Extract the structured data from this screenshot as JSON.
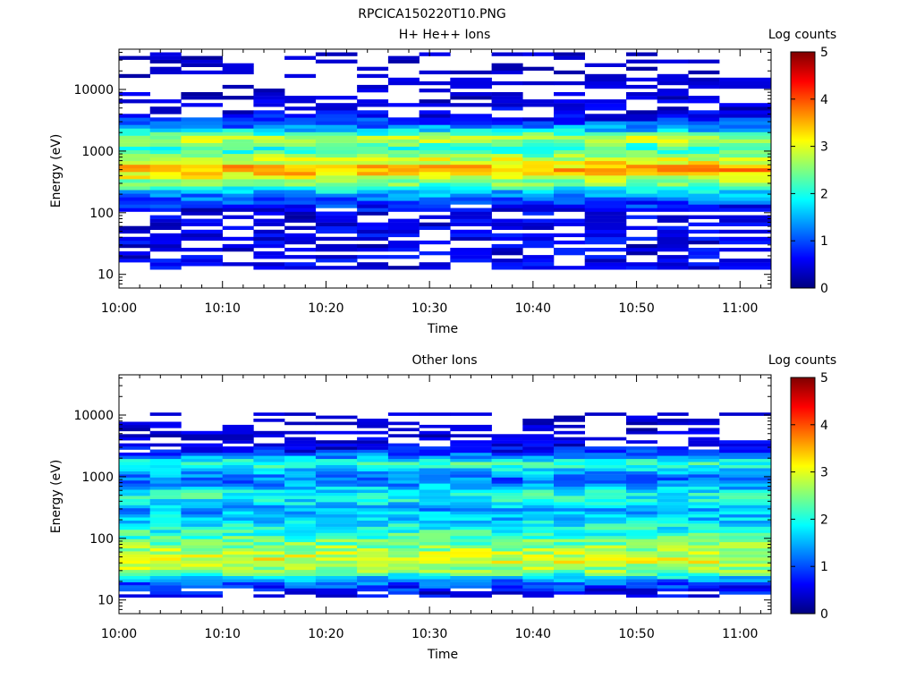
{
  "figure_title": "RPCICA150220T10.PNG",
  "chart_data": [
    {
      "type": "heatmap",
      "title": "H+ He++ Ions",
      "xlabel": "Time",
      "ylabel": "Energy (eV)",
      "x_ticks": [
        "10:00",
        "10:10",
        "10:20",
        "10:30",
        "10:40",
        "10:50",
        "11:00"
      ],
      "xlim": [
        "10:00",
        "11:03"
      ],
      "y_scale": "log",
      "y_ticks": [
        "10",
        "100",
        "1000",
        "10000"
      ],
      "ylim": [
        6,
        45000
      ],
      "colorbar_label": "Log counts",
      "colorbar_ticks": [
        "0",
        "1",
        "2",
        "3",
        "4",
        "5"
      ],
      "colorbar_range": [
        0,
        5
      ],
      "colormap": [
        "#00007f",
        "#0000ff",
        "#007fff",
        "#00ffff",
        "#7fff7f",
        "#ffff00",
        "#ff7f00",
        "#ff0000",
        "#7f0000"
      ],
      "time_bins": [
        "10:00",
        "10:03",
        "10:06",
        "10:10",
        "10:13",
        "10:16",
        "10:19",
        "10:23",
        "10:26",
        "10:29",
        "10:32",
        "10:36",
        "10:39",
        "10:42",
        "10:45",
        "10:49",
        "10:52",
        "10:55",
        "10:58"
      ],
      "energy_profile": [
        {
          "energy": 100,
          "log_counts": 0.4
        },
        {
          "energy": 200,
          "log_counts": 1.4
        },
        {
          "energy": 320,
          "log_counts": 2.6
        },
        {
          "energy": 500,
          "log_counts": 3.6
        },
        {
          "energy": 750,
          "log_counts": 2.8
        },
        {
          "energy": 1100,
          "log_counts": 2.0
        },
        {
          "energy": 1600,
          "log_counts": 2.9
        },
        {
          "energy": 2300,
          "log_counts": 1.4
        },
        {
          "energy": 4000,
          "log_counts": 0.4
        },
        {
          "energy": 10000,
          "log_counts": 0.1
        },
        {
          "energy": 30000,
          "log_counts": 0.1
        }
      ]
    },
    {
      "type": "heatmap",
      "title": "Other Ions",
      "xlabel": "Time",
      "ylabel": "Energy (eV)",
      "x_ticks": [
        "10:00",
        "10:10",
        "10:20",
        "10:30",
        "10:40",
        "10:50",
        "11:00"
      ],
      "xlim": [
        "10:00",
        "11:03"
      ],
      "y_scale": "log",
      "y_ticks": [
        "10",
        "100",
        "1000",
        "10000"
      ],
      "ylim": [
        6,
        45000
      ],
      "colorbar_label": "Log counts",
      "colorbar_ticks": [
        "0",
        "1",
        "2",
        "3",
        "4",
        "5"
      ],
      "colorbar_range": [
        0,
        5
      ],
      "colormap": [
        "#00007f",
        "#0000ff",
        "#007fff",
        "#00ffff",
        "#7fff7f",
        "#ffff00",
        "#ff7f00",
        "#ff0000",
        "#7f0000"
      ],
      "time_bins": [
        "10:00",
        "10:03",
        "10:06",
        "10:10",
        "10:13",
        "10:16",
        "10:19",
        "10:23",
        "10:26",
        "10:29",
        "10:32",
        "10:36",
        "10:39",
        "10:42",
        "10:45",
        "10:49",
        "10:52",
        "10:55",
        "10:58"
      ],
      "energy_profile": [
        {
          "energy": 12,
          "log_counts": 0.4
        },
        {
          "energy": 20,
          "log_counts": 1.2
        },
        {
          "energy": 30,
          "log_counts": 2.6
        },
        {
          "energy": 45,
          "log_counts": 3.0
        },
        {
          "energy": 70,
          "log_counts": 2.6
        },
        {
          "energy": 110,
          "log_counts": 2.2
        },
        {
          "energy": 180,
          "log_counts": 1.8
        },
        {
          "energy": 300,
          "log_counts": 1.4
        },
        {
          "energy": 500,
          "log_counts": 2.1
        },
        {
          "energy": 900,
          "log_counts": 1.1
        },
        {
          "energy": 1700,
          "log_counts": 2.2
        },
        {
          "energy": 2500,
          "log_counts": 0.8
        },
        {
          "energy": 3500,
          "log_counts": 0.3
        },
        {
          "energy": 10000,
          "log_counts": 0.1
        }
      ]
    }
  ]
}
